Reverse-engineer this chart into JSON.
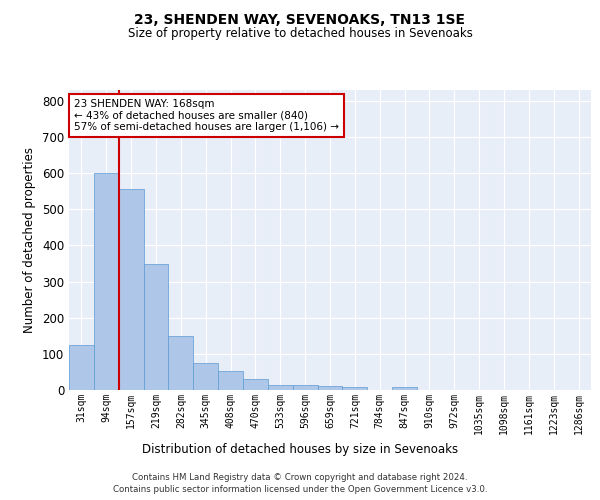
{
  "title1": "23, SHENDEN WAY, SEVENOAKS, TN13 1SE",
  "title2": "Size of property relative to detached houses in Sevenoaks",
  "xlabel": "Distribution of detached houses by size in Sevenoaks",
  "ylabel": "Number of detached properties",
  "categories": [
    "31sqm",
    "94sqm",
    "157sqm",
    "219sqm",
    "282sqm",
    "345sqm",
    "408sqm",
    "470sqm",
    "533sqm",
    "596sqm",
    "659sqm",
    "721sqm",
    "784sqm",
    "847sqm",
    "910sqm",
    "972sqm",
    "1035sqm",
    "1098sqm",
    "1161sqm",
    "1223sqm",
    "1286sqm"
  ],
  "values": [
    125,
    600,
    555,
    348,
    150,
    75,
    52,
    30,
    15,
    13,
    12,
    7,
    0,
    8,
    0,
    0,
    0,
    0,
    0,
    0,
    0
  ],
  "bar_color": "#aec6e8",
  "bar_edge_color": "#5b9bd5",
  "vline_x_idx": 2,
  "vline_color": "#cc0000",
  "annotation_text": "23 SHENDEN WAY: 168sqm\n← 43% of detached houses are smaller (840)\n57% of semi-detached houses are larger (1,106) →",
  "annotation_box_color": "#cc0000",
  "ylim": [
    0,
    830
  ],
  "yticks": [
    0,
    100,
    200,
    300,
    400,
    500,
    600,
    700,
    800
  ],
  "background_color": "#e8eef8",
  "grid_color": "#ffffff",
  "footer1": "Contains HM Land Registry data © Crown copyright and database right 2024.",
  "footer2": "Contains public sector information licensed under the Open Government Licence v3.0."
}
